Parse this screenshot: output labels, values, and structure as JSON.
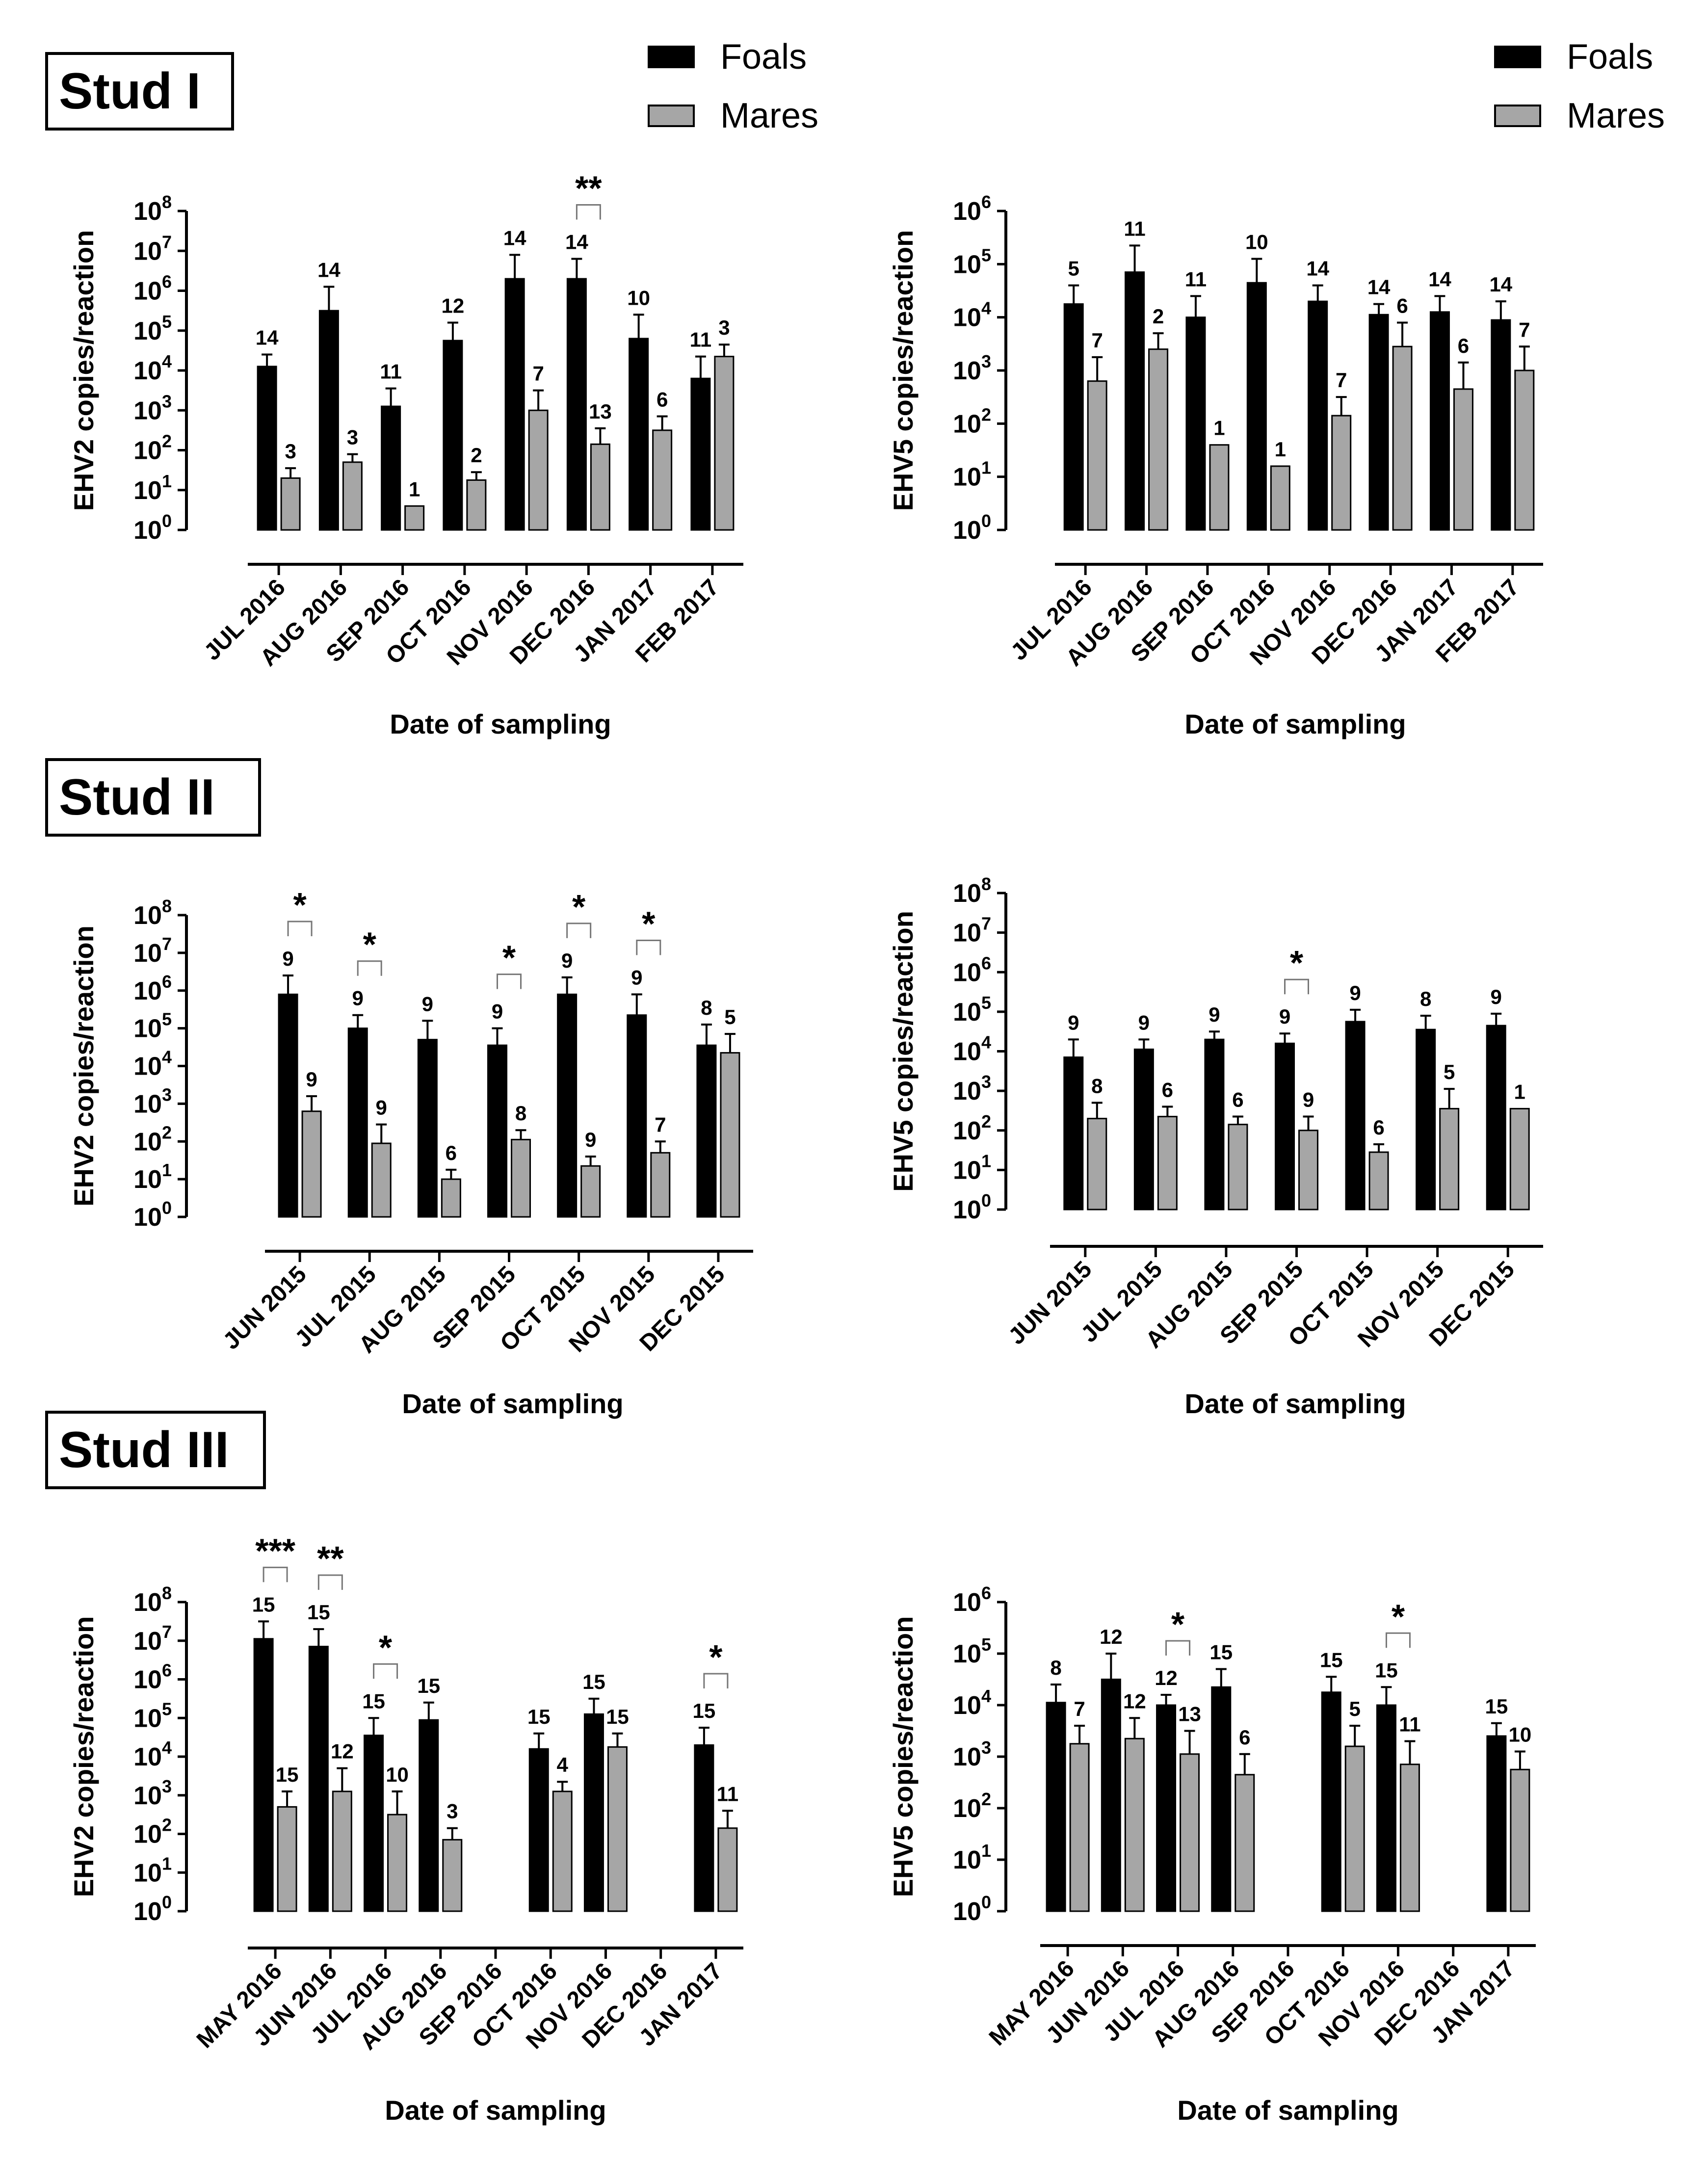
{
  "colors": {
    "foals": "#000000",
    "mares": "#a6a6a6",
    "axis": "#000000"
  },
  "legend": {
    "foals": "Foals",
    "mares": "Mares"
  },
  "studs": [
    "Stud I",
    "Stud II",
    "Stud III"
  ],
  "chart_data": [
    {
      "type": "bar",
      "panel": "Stud I - EHV2",
      "scale": "log10",
      "ylabel": "EHV2 copies/reaction",
      "xlabel": "Date of sampling",
      "ylim_exp": [
        0,
        8
      ],
      "categories": [
        "JUL 2016",
        "AUG 2016",
        "SEP 2016",
        "OCT 2016",
        "NOV 2016",
        "DEC 2016",
        "JAN 2017",
        "FEB 2017"
      ],
      "series": [
        {
          "name": "Foals",
          "log_values": [
            4.1,
            5.5,
            3.1,
            4.75,
            6.3,
            6.3,
            4.8,
            3.8
          ],
          "log_errors": [
            4.4,
            6.1,
            3.55,
            5.2,
            6.9,
            6.8,
            5.4,
            4.35
          ],
          "n": [
            "14",
            "14",
            "11",
            "12",
            "14",
            "14",
            "10",
            "11"
          ]
        },
        {
          "name": "Mares",
          "log_values": [
            1.3,
            1.7,
            0.6,
            1.25,
            3.0,
            2.15,
            2.5,
            4.35
          ],
          "log_errors": [
            1.55,
            1.9,
            null,
            1.45,
            3.5,
            2.55,
            2.85,
            4.65
          ],
          "n": [
            "3",
            "3",
            "1",
            "2",
            "7",
            "13",
            "6",
            "3"
          ]
        }
      ],
      "significance": [
        {
          "category": "DEC 2016",
          "label": "**"
        }
      ]
    },
    {
      "type": "bar",
      "panel": "Stud I - EHV5",
      "scale": "log10",
      "ylabel": "EHV5 copies/reaction",
      "xlabel": "Date of sampling",
      "ylim_exp": [
        0,
        6
      ],
      "categories": [
        "JUL 2016",
        "AUG 2016",
        "SEP 2016",
        "OCT 2016",
        "NOV 2016",
        "DEC 2016",
        "JAN 2017",
        "FEB 2017"
      ],
      "series": [
        {
          "name": "Foals",
          "log_values": [
            4.25,
            4.85,
            4.0,
            4.65,
            4.3,
            4.05,
            4.1,
            3.95
          ],
          "log_errors": [
            4.6,
            5.35,
            4.4,
            5.1,
            4.6,
            4.25,
            4.4,
            4.3
          ],
          "n": [
            "5",
            "11",
            "11",
            "10",
            "14",
            "14",
            "14",
            "14"
          ]
        },
        {
          "name": "Mares",
          "log_values": [
            2.8,
            3.4,
            1.6,
            1.2,
            2.15,
            3.45,
            2.65,
            3.0
          ],
          "log_errors": [
            3.25,
            3.7,
            null,
            null,
            2.5,
            3.9,
            3.15,
            3.45
          ],
          "n": [
            "7",
            "2",
            "1",
            "1",
            "7",
            "6",
            "6",
            "7"
          ]
        }
      ],
      "significance": []
    },
    {
      "type": "bar",
      "panel": "Stud II - EHV2",
      "scale": "log10",
      "ylabel": "EHV2 copies/reaction",
      "xlabel": "Date of sampling",
      "ylim_exp": [
        0,
        8
      ],
      "categories": [
        "JUN 2015",
        "JUL 2015",
        "AUG 2015",
        "SEP 2015",
        "OCT 2015",
        "NOV 2015",
        "DEC 2015"
      ],
      "series": [
        {
          "name": "Foals",
          "log_values": [
            5.9,
            5.0,
            4.7,
            4.55,
            5.9,
            5.35,
            4.55
          ],
          "log_errors": [
            6.4,
            5.35,
            5.2,
            5.0,
            6.35,
            5.9,
            5.1
          ],
          "n": [
            "9",
            "9",
            "9",
            "9",
            "9",
            "9",
            "8"
          ]
        },
        {
          "name": "Mares",
          "log_values": [
            2.8,
            1.95,
            1.0,
            2.05,
            1.35,
            1.7,
            4.35
          ],
          "log_errors": [
            3.2,
            2.45,
            1.25,
            2.3,
            1.6,
            2.0,
            4.85
          ],
          "n": [
            "9",
            "9",
            "6",
            "8",
            "9",
            "7",
            "5"
          ]
        }
      ],
      "significance": [
        {
          "category": "JUN 2015",
          "label": "*"
        },
        {
          "category": "JUL 2015",
          "label": "*"
        },
        {
          "category": "SEP 2015",
          "label": "*"
        },
        {
          "category": "OCT 2015",
          "label": "*"
        },
        {
          "category": "NOV 2015",
          "label": "*"
        }
      ]
    },
    {
      "type": "bar",
      "panel": "Stud II - EHV5",
      "scale": "log10",
      "ylabel": "EHV5 copies/reaction",
      "xlabel": "Date of sampling",
      "ylim_exp": [
        0,
        8
      ],
      "categories": [
        "JUN 2015",
        "JUL 2015",
        "AUG 2015",
        "SEP 2015",
        "OCT 2015",
        "NOV 2015",
        "DEC 2015"
      ],
      "series": [
        {
          "name": "Foals",
          "log_values": [
            3.85,
            4.05,
            4.3,
            4.2,
            4.75,
            4.55,
            4.65
          ],
          "log_errors": [
            4.3,
            4.3,
            4.5,
            4.45,
            5.05,
            4.9,
            4.95
          ],
          "n": [
            "9",
            "9",
            "9",
            "9",
            "9",
            "8",
            "9"
          ]
        },
        {
          "name": "Mares",
          "log_values": [
            2.3,
            2.35,
            2.15,
            2.0,
            1.45,
            2.55,
            2.55
          ],
          "log_errors": [
            2.7,
            2.6,
            2.35,
            2.35,
            1.65,
            3.05,
            null
          ],
          "n": [
            "8",
            "6",
            "6",
            "9",
            "6",
            "5",
            "1"
          ]
        }
      ],
      "significance": [
        {
          "category": "SEP 2015",
          "label": "*"
        }
      ]
    },
    {
      "type": "bar",
      "panel": "Stud III - EHV2",
      "scale": "log10",
      "ylabel": "EHV2 copies/reaction",
      "xlabel": "Date of sampling",
      "ylim_exp": [
        0,
        8
      ],
      "categories": [
        "MAY 2016",
        "JUN 2016",
        "JUL 2016",
        "AUG 2016",
        "SEP 2016",
        "OCT 2016",
        "NOV 2016",
        "DEC 2016",
        "JAN 2017"
      ],
      "series": [
        {
          "name": "Foals",
          "log_values": [
            7.05,
            6.85,
            4.55,
            4.95,
            null,
            4.2,
            5.1,
            null,
            4.3
          ],
          "log_errors": [
            7.5,
            7.3,
            5.0,
            5.4,
            null,
            4.6,
            5.5,
            null,
            4.75
          ],
          "n": [
            "15",
            "15",
            "15",
            "15",
            "",
            "15",
            "15",
            "",
            "15"
          ]
        },
        {
          "name": "Mares",
          "log_values": [
            2.7,
            3.1,
            2.5,
            1.85,
            null,
            3.1,
            4.25,
            null,
            2.15
          ],
          "log_errors": [
            3.1,
            3.7,
            3.1,
            2.15,
            null,
            3.35,
            4.6,
            null,
            2.6
          ],
          "n": [
            "15",
            "12",
            "10",
            "3",
            "",
            "4",
            "15",
            "",
            "11"
          ]
        }
      ],
      "significance": [
        {
          "category": "MAY 2016",
          "label": "***"
        },
        {
          "category": "JUN 2016",
          "label": "**"
        },
        {
          "category": "JUL 2016",
          "label": "*"
        },
        {
          "category": "JAN 2017",
          "label": "*"
        }
      ]
    },
    {
      "type": "bar",
      "panel": "Stud III - EHV5",
      "scale": "log10",
      "ylabel": "EHV5 copies/reaction",
      "xlabel": "Date of sampling",
      "ylim_exp": [
        0,
        6
      ],
      "categories": [
        "MAY 2016",
        "JUN 2016",
        "JUL 2016",
        "AUG 2016",
        "SEP 2016",
        "OCT 2016",
        "NOV 2016",
        "DEC 2016",
        "JAN 2017"
      ],
      "series": [
        {
          "name": "Foals",
          "log_values": [
            4.05,
            4.5,
            4.0,
            4.35,
            null,
            4.25,
            4.0,
            null,
            3.4
          ],
          "log_errors": [
            4.4,
            5.0,
            4.2,
            4.7,
            null,
            4.55,
            4.35,
            null,
            3.65
          ],
          "n": [
            "8",
            "12",
            "12",
            "15",
            "",
            "15",
            "15",
            "",
            "15"
          ]
        },
        {
          "name": "Mares",
          "log_values": [
            3.25,
            3.35,
            3.05,
            2.65,
            null,
            3.2,
            2.85,
            null,
            2.75
          ],
          "log_errors": [
            3.6,
            3.75,
            3.5,
            3.05,
            null,
            3.6,
            3.3,
            null,
            3.1
          ],
          "n": [
            "7",
            "12",
            "13",
            "6",
            "",
            "5",
            "11",
            "",
            "10"
          ]
        }
      ],
      "significance": [
        {
          "category": "JUL 2016",
          "label": "*"
        },
        {
          "category": "NOV 2016",
          "label": "*"
        }
      ]
    }
  ]
}
